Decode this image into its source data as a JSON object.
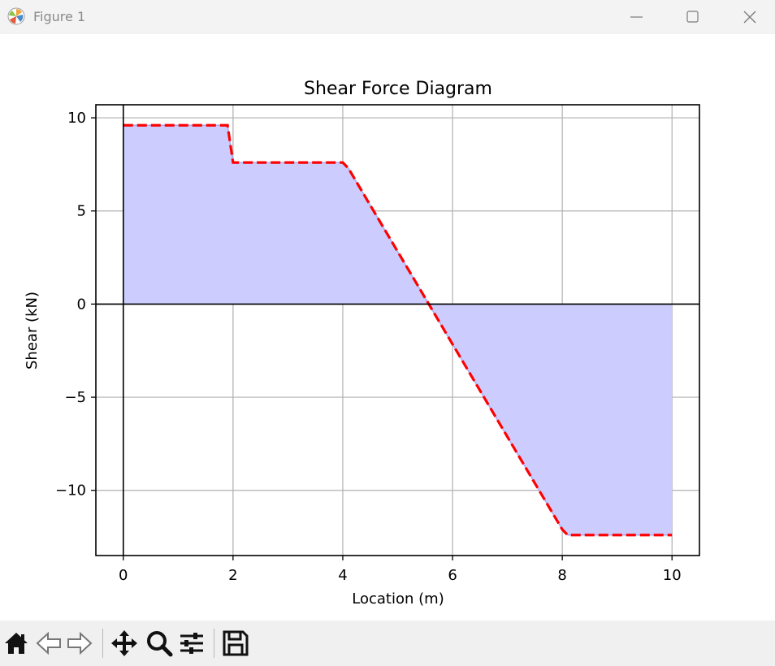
{
  "window": {
    "title": "Figure 1",
    "icon": "matplotlib-logo-icon",
    "buttons": [
      "minimize-icon",
      "maximize-icon",
      "close-icon"
    ]
  },
  "toolbar": {
    "tools": [
      "home-icon",
      "back-arrow-icon",
      "forward-arrow-icon",
      "pan-move-icon",
      "zoom-magnifier-icon",
      "configure-sliders-icon",
      "save-floppy-icon"
    ]
  },
  "chart_data": {
    "type": "area",
    "title": "Shear Force Diagram",
    "xlabel": "Location (m)",
    "ylabel": "Shear (kN)",
    "xlim": [
      -0.5,
      10.5
    ],
    "ylim": [
      -13.5,
      10.7
    ],
    "xticks": [
      0,
      2,
      4,
      6,
      8,
      10
    ],
    "xtick_labels": [
      "0",
      "2",
      "4",
      "6",
      "8",
      "10"
    ],
    "yticks": [
      10,
      5,
      0,
      -5,
      -10
    ],
    "ytick_labels": [
      "10",
      "5",
      "0",
      "−5",
      "−10"
    ],
    "grid": true,
    "series": [
      {
        "x": [
          0,
          1.9,
          2.0,
          4.0,
          4.1,
          8.0,
          8.1,
          10.0
        ],
        "values": [
          9.6,
          9.6,
          7.6,
          7.6,
          7.3,
          -12.1,
          -12.4,
          -12.4
        ],
        "line_color": "#ff0000",
        "line_style": "dashed",
        "fill_color": "#ccccff"
      }
    ],
    "reference_lines": [
      {
        "axis": "x",
        "value": 0,
        "color": "#000000"
      },
      {
        "axis": "y",
        "value": 0,
        "color": "#000000"
      }
    ]
  }
}
